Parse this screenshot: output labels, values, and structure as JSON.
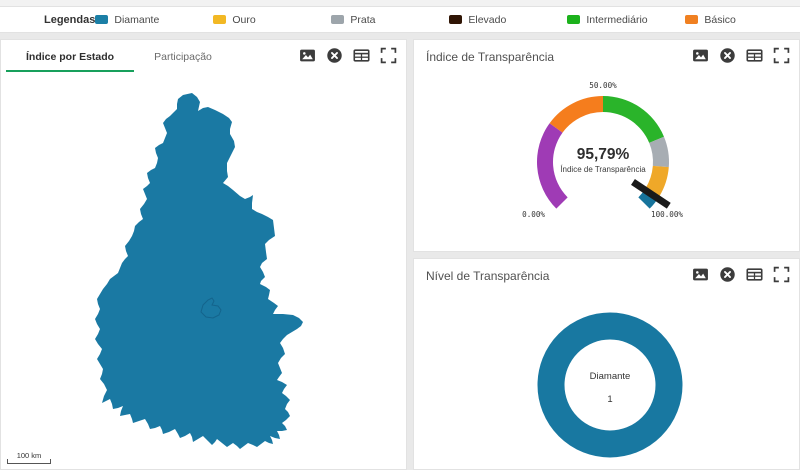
{
  "legend": {
    "title": "Legendas",
    "items": [
      {
        "label": "Diamante",
        "color": "#1b7fa6"
      },
      {
        "label": "Ouro",
        "color": "#f2b824"
      },
      {
        "label": "Prata",
        "color": "#9da5ab"
      },
      {
        "label": "Elevado",
        "color": "#301505"
      },
      {
        "label": "Intermediário",
        "color": "#1cb21c"
      },
      {
        "label": "Básico",
        "color": "#f08021"
      }
    ]
  },
  "toolbar_icons": [
    "export-image",
    "remove",
    "table-view",
    "fullscreen"
  ],
  "panels": {
    "map": {
      "tabs": [
        {
          "label": "Índice por Estado",
          "active": true
        },
        {
          "label": "Participação",
          "active": false
        }
      ],
      "scale_label": "100 km",
      "state_fill": "#1a79a3",
      "municipality_stroke": "#14648c"
    },
    "gauge": {
      "title": "Índice de Transparência"
    },
    "donut": {
      "title": "Nível de Transparência"
    }
  },
  "chart_data": [
    {
      "type": "gauge",
      "title": "Índice de Transparência",
      "value": 95.79,
      "value_label": "95,79%",
      "center_sublabel": "Índice de Transparência",
      "min": 0,
      "max": 100,
      "start_angle": 225,
      "end_angle": -45,
      "tick_labels": [
        "0.00%",
        "50.00%",
        "100.00%"
      ],
      "segments": [
        {
          "from": 0,
          "to": 30,
          "color": "#9f3bb5"
        },
        {
          "from": 30,
          "to": 50,
          "color": "#f57d1d"
        },
        {
          "from": 50,
          "to": 75,
          "color": "#2ab42a"
        },
        {
          "from": 75,
          "to": 85,
          "color": "#a7adb3"
        },
        {
          "from": 85,
          "to": 95,
          "color": "#efa829"
        },
        {
          "from": 95,
          "to": 100,
          "color": "#17749c"
        }
      ],
      "needle_color": "#1a1a1a"
    },
    {
      "type": "pie",
      "title": "Nível de Transparência",
      "labels": [
        "Diamante"
      ],
      "values": [
        1
      ],
      "center_label": "Diamante",
      "center_value": "1",
      "colors": [
        "#1878a1"
      ]
    }
  ]
}
